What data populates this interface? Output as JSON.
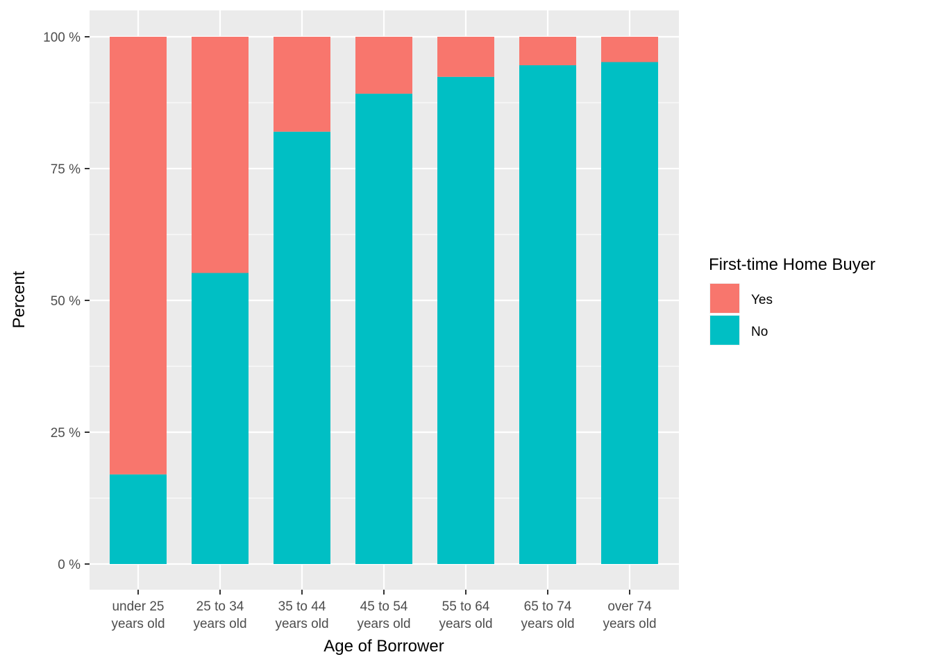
{
  "chart_data": {
    "type": "bar",
    "stacked": true,
    "categories": [
      [
        "under 25",
        "years old"
      ],
      [
        "25 to 34",
        "years old"
      ],
      [
        "35 to 44",
        "years old"
      ],
      [
        "45 to 54",
        "years old"
      ],
      [
        "55 to 64",
        "years old"
      ],
      [
        "65 to 74",
        "years old"
      ],
      [
        "over 74",
        "years old"
      ]
    ],
    "series": [
      {
        "name": "Yes",
        "color": "#F8766D",
        "values": [
          83.0,
          44.8,
          18.0,
          10.8,
          7.6,
          5.4,
          4.8
        ]
      },
      {
        "name": "No",
        "color": "#00BFC4",
        "values": [
          17.0,
          55.2,
          82.0,
          89.2,
          92.4,
          94.6,
          95.2
        ]
      }
    ],
    "title": "",
    "xlabel": "Age of Borrower",
    "ylabel": "Percent",
    "ylim": [
      0,
      100
    ],
    "yticks": [
      0,
      25,
      50,
      75,
      100
    ],
    "ytick_labels": [
      "0 %",
      "25 %",
      "50 %",
      "75 %",
      "100 %"
    ],
    "legend": {
      "title": "First-time Home Buyer",
      "position": "right"
    },
    "grid": true,
    "panel_background": "#EBEBEB",
    "gridline_color": "#FFFFFF"
  }
}
